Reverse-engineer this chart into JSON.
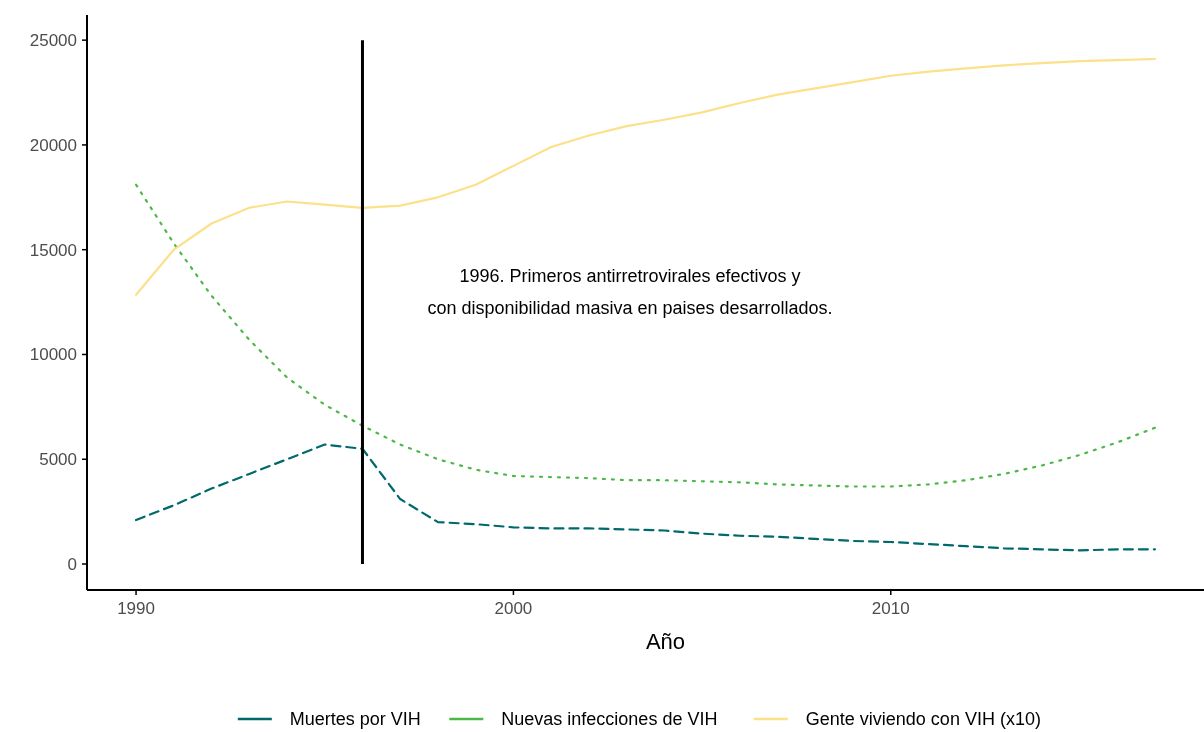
{
  "chart_data": {
    "type": "line",
    "xlabel": "Año",
    "x": [
      1990,
      1991,
      1992,
      1993,
      1994,
      1995,
      1996,
      1997,
      1998,
      1999,
      2000,
      2001,
      2002,
      2003,
      2004,
      2005,
      2006,
      2007,
      2008,
      2009,
      2010,
      2011,
      2012,
      2013,
      2014,
      2015,
      2016,
      2017
    ],
    "series": [
      {
        "name": "Muertes por VIH",
        "color": "#00696b",
        "line_style": "dashed",
        "values": [
          2100,
          2800,
          3600,
          4300,
          5000,
          5700,
          5500,
          3100,
          2000,
          1900,
          1750,
          1700,
          1700,
          1650,
          1600,
          1450,
          1350,
          1300,
          1200,
          1100,
          1050,
          950,
          850,
          750,
          700,
          650,
          700,
          700
        ]
      },
      {
        "name": "Nuevas infecciones de VIH",
        "color": "#4cb848",
        "line_style": "dotted",
        "values": [
          18100,
          15300,
          12800,
          10700,
          8900,
          7600,
          6600,
          5700,
          5000,
          4500,
          4200,
          4150,
          4100,
          4000,
          4000,
          3950,
          3900,
          3800,
          3750,
          3700,
          3700,
          3800,
          4000,
          4300,
          4700,
          5200,
          5800,
          6500
        ]
      },
      {
        "name": "Gente viviendo con VIH (x10)",
        "color": "#fde08a",
        "line_style": "solid",
        "values": [
          12850,
          15000,
          16250,
          17000,
          17300,
          17150,
          17000,
          17100,
          17500,
          18100,
          19000,
          19900,
          20450,
          20900,
          21200,
          21550,
          22000,
          22400,
          22700,
          23000,
          23300,
          23500,
          23650,
          23800,
          23900,
          24000,
          24050,
          24100
        ]
      }
    ],
    "xlim": [
      1988.7,
      2018.3
    ],
    "xticks": [
      1990,
      2000,
      2010
    ],
    "ylim": [
      -1240,
      26200
    ],
    "yticks": [
      0,
      5000,
      10000,
      15000,
      20000,
      25000
    ],
    "ref_lines": [
      {
        "axis": "x",
        "value": 1996,
        "color": "#000000"
      }
    ],
    "annotations": [
      "1996. Primeros antirretrovirales efectivos y\ncon disponibilidad masiva en paises desarrollados."
    ],
    "legend": "bottom",
    "grid": false
  }
}
